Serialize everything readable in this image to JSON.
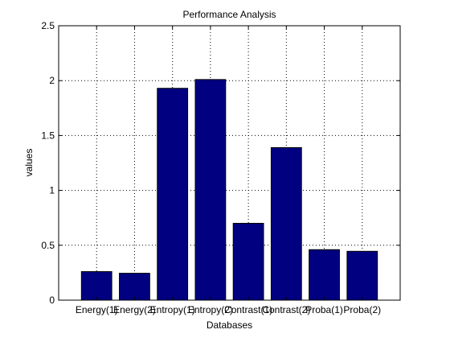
{
  "chart_data": {
    "type": "bar",
    "title": "Performance Analysis",
    "xlabel": "Databases",
    "ylabel": "values",
    "categories": [
      "Energy(1)",
      "Energy(2)",
      "Entropy(1)",
      "Entropy(2)",
      "Contrast(1)",
      "Contrast(2)",
      "Proba(1)",
      "Proba(2)"
    ],
    "values": [
      0.26,
      0.245,
      1.93,
      2.01,
      0.7,
      1.39,
      0.46,
      0.445
    ],
    "ylim": [
      0,
      2.5
    ],
    "yticks": [
      "0",
      "0.5",
      "1",
      "1.5",
      "2",
      "2.5"
    ],
    "grid": true,
    "colors": {
      "bar": "#000080",
      "bar_edge": "#000000",
      "grid": "#000000",
      "axes": "#000000",
      "background": "#ffffff"
    }
  }
}
